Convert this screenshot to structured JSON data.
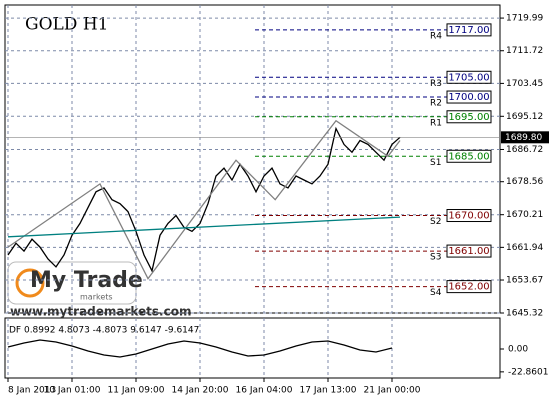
{
  "chart_data": {
    "type": "line",
    "title": "GOLD H1",
    "xlim": [
      -0.375,
      61.5
    ],
    "xticks": [
      {
        "value": 0,
        "label": "8 Jan 2013"
      },
      {
        "value": 8,
        "label": "10 Jan 01:00"
      },
      {
        "value": 16,
        "label": "11 Jan 09:00"
      },
      {
        "value": 24,
        "label": "14 Jan 20:00"
      },
      {
        "value": 32,
        "label": "16 Jan 04:00"
      },
      {
        "value": 40,
        "label": "17 Jan 13:00"
      },
      {
        "value": 48,
        "label": "21 Jan 00:00"
      }
    ],
    "ylim": [
      1645.32,
      1723.3
    ],
    "yticks": [
      1719.99,
      1711.72,
      1703.45,
      1695.12,
      1686.72,
      1678.56,
      1670.21,
      1661.94,
      1653.67,
      1645.32
    ],
    "grid": true,
    "series": [
      {
        "color": "#000000",
        "x": [
          0,
          1,
          2,
          3,
          4,
          5,
          6,
          7,
          8,
          9,
          10,
          11,
          12,
          13,
          14,
          15,
          16,
          17,
          18,
          19,
          20,
          21,
          22,
          23,
          24,
          25,
          26,
          27,
          28,
          29,
          30,
          31,
          32,
          33,
          34,
          35,
          36,
          37,
          38,
          39,
          40,
          41,
          42,
          43,
          44,
          45,
          46,
          47,
          48,
          49
        ],
        "values": [
          1660,
          1663,
          1661,
          1664,
          1662,
          1659,
          1657,
          1660,
          1665,
          1668,
          1672,
          1676,
          1677,
          1674,
          1673,
          1671,
          1666,
          1660,
          1656,
          1665,
          1668,
          1670,
          1667,
          1666,
          1668,
          1673,
          1680,
          1682,
          1679,
          1683,
          1680,
          1676,
          1680,
          1682,
          1678,
          1677,
          1680,
          1679,
          1678,
          1680,
          1683,
          1692,
          1688,
          1686,
          1689,
          1688,
          1686,
          1684,
          1688,
          1689.8
        ]
      },
      {
        "color": "#808080",
        "x": [
          0,
          11.5,
          17.5,
          28.5,
          33.4,
          41,
          47.5,
          49
        ],
        "values": [
          1662,
          1678,
          1654,
          1684,
          1674,
          1694,
          1685,
          1689
        ]
      },
      {
        "color": "#008080",
        "x": [
          0,
          49
        ],
        "values": [
          1664.6,
          1669.6
        ]
      }
    ],
    "levels": [
      {
        "name": "R4",
        "value": 1717,
        "label": "1717.00",
        "color": "#000080"
      },
      {
        "name": "R3",
        "value": 1705,
        "label": "1705.00",
        "color": "#000080"
      },
      {
        "name": "R2",
        "value": 1700,
        "label": "1700.00",
        "color": "#000080"
      },
      {
        "name": "R1",
        "value": 1695,
        "label": "1695.00",
        "color": "#008000"
      },
      {
        "name": "S1",
        "value": 1685,
        "label": "1685.00",
        "color": "#008000"
      },
      {
        "name": "S2",
        "value": 1670,
        "label": "1670.00",
        "color": "#800000"
      },
      {
        "name": "S3",
        "value": 1661,
        "label": "1661.00",
        "color": "#800000"
      },
      {
        "name": "S4",
        "value": 1652,
        "label": "1652.00",
        "color": "#800000"
      }
    ],
    "current_price": {
      "value": 1689.8,
      "label": "1689.80"
    },
    "indicator": {
      "title": "DF 0.8992 4.8073 -4.8073 9.6147 -9.6147",
      "ylim": [
        -29,
        31
      ],
      "yticks": [
        {
          "value": 0,
          "label": "0.00"
        },
        -22.8601
      ],
      "series": [
        {
          "color": "#000000",
          "x": [
            0,
            2,
            4,
            6,
            8,
            10,
            12,
            14,
            16,
            18,
            20,
            22,
            24,
            26,
            28,
            30,
            32,
            34,
            36,
            38,
            40,
            42,
            44,
            46,
            48
          ],
          "values": [
            2,
            6,
            9,
            7,
            3,
            -2,
            -6,
            -8,
            -5,
            0,
            5,
            8,
            6,
            2,
            -3,
            -7,
            -6,
            -2,
            3,
            7,
            8,
            4,
            -1,
            -3,
            1
          ]
        }
      ]
    }
  },
  "watermark": {
    "brand": "My Trade",
    "sub": "markets",
    "url": "www.mytrademarkets.com"
  }
}
